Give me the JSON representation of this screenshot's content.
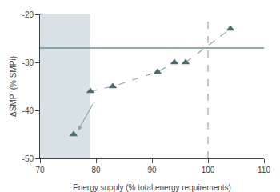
{
  "chart_data": {
    "type": "line",
    "xlabel": "Energy supply (% total energy requirements)",
    "ylabel": "ΔSMP  (% SMPi)",
    "series": [
      {
        "type": "line",
        "line_style": "dashed",
        "color": "#8caaac",
        "x": [
          79,
          83,
          91,
          94,
          96,
          104
        ],
        "values": [
          -36,
          -35,
          -32,
          -30,
          -30,
          -23
        ]
      },
      {
        "type": "scatter",
        "marker": "triangle-up",
        "color": "#4a6b6e",
        "x": [
          76
        ],
        "values": [
          -45
        ]
      },
      {
        "type": "scatter",
        "marker": "triangle-up",
        "color": "#4a6b6e",
        "x": [
          79,
          83,
          91,
          94,
          96,
          104
        ],
        "values": [
          -36,
          -35,
          -32,
          -30,
          -30,
          -23
        ]
      }
    ],
    "shade": {
      "xmin": 70,
      "xmax": 79,
      "color": "#a8bfc8"
    },
    "hline": {
      "y": -27,
      "color": "#6a9090"
    },
    "vline": {
      "x": 100,
      "color": "#999999"
    },
    "arrow": {
      "x_start": 79.5,
      "y_start": -38.5,
      "x_end": 76.8,
      "y_end": -44.2,
      "color": "#8caaac"
    },
    "xlim": [
      70,
      110
    ],
    "ylim": [
      -50,
      -20
    ],
    "xticks": [
      70,
      80,
      90,
      100,
      110
    ],
    "yticks": [
      -20,
      -30,
      -40,
      -50
    ],
    "grid": false
  }
}
